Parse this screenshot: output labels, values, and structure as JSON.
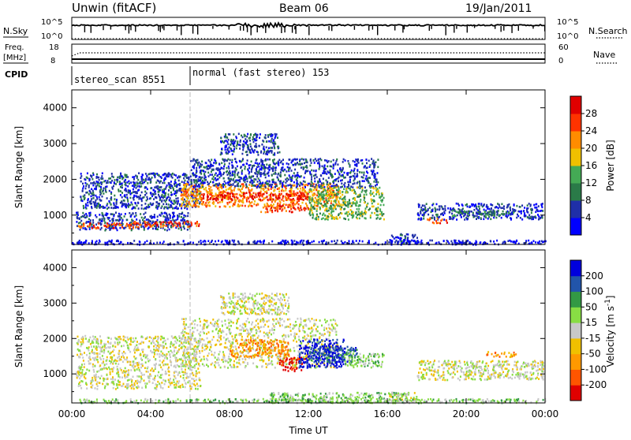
{
  "header": {
    "station": "Unwin (fitACF)",
    "beam": "Beam 06",
    "date": "19/Jan/2011"
  },
  "strip_labels": {
    "nsky": "N.Sky",
    "freq_line1": "Freq.",
    "freq_line2": "[MHz]",
    "cpid": "CPID",
    "nsearch": "N.Search",
    "nave": "Nave"
  },
  "strip_ticks": {
    "nsky_left": [
      "10^5",
      "10^0"
    ],
    "nsky_right": [
      "10^5",
      "10^0"
    ],
    "freq_left": [
      "18",
      "8"
    ],
    "nave_right": [
      "60",
      "0"
    ]
  },
  "cpid_segments": [
    {
      "label": "stereo_scan 8551",
      "start_hour": 0
    },
    {
      "label": "normal (fast stereo) 153",
      "start_hour": 6
    }
  ],
  "colors": {
    "power": [
      "#0000ff",
      "#1f2fa8",
      "#2a7a48",
      "#44aa55",
      "#f0c000",
      "#ff8c00",
      "#ff3300",
      "#e00000"
    ],
    "velocity": [
      "#e00000",
      "#ff5500",
      "#ff9900",
      "#f0c000",
      "#c8c8c8",
      "#88dd44",
      "#339944",
      "#2255aa",
      "#0000dd"
    ]
  },
  "chart_data": [
    {
      "type": "heatmap",
      "name": "power",
      "xlabel": "",
      "ylabel": "Slant Range [km]",
      "xlim": [
        0,
        24
      ],
      "ylim": [
        180,
        4500
      ],
      "x_ticks": [
        "00:00",
        "04:00",
        "08:00",
        "12:00",
        "16:00",
        "20:00",
        "00:00"
      ],
      "y_ticks": [
        1000,
        2000,
        3000,
        4000
      ],
      "colorbar": {
        "label": "Power [dB]",
        "ticks": [
          4,
          8,
          12,
          16,
          20,
          24,
          28
        ],
        "range": [
          0,
          32
        ]
      },
      "regions": [
        {
          "t0": 0.2,
          "t1": 6.0,
          "r0": 600,
          "r1": 1100,
          "level": 1
        },
        {
          "t0": 0.3,
          "t1": 3.5,
          "r0": 650,
          "r1": 800,
          "level": 6
        },
        {
          "t0": 0.4,
          "t1": 6.5,
          "r0": 1200,
          "r1": 2200,
          "level": 1
        },
        {
          "t0": 3.0,
          "t1": 6.5,
          "r0": 700,
          "r1": 850,
          "level": 6
        },
        {
          "t0": 5.5,
          "t1": 13.5,
          "r0": 1250,
          "r1": 1900,
          "level": 5
        },
        {
          "t0": 6.5,
          "t1": 12.0,
          "r0": 1450,
          "r1": 1650,
          "level": 7
        },
        {
          "t0": 9.5,
          "t1": 12.0,
          "r0": 1100,
          "r1": 1300,
          "level": 6
        },
        {
          "t0": 6.0,
          "t1": 15.5,
          "r0": 1800,
          "r1": 2600,
          "level": 1
        },
        {
          "t0": 7.5,
          "t1": 10.5,
          "r0": 2700,
          "r1": 3300,
          "level": 1
        },
        {
          "t0": 12.0,
          "t1": 15.8,
          "r0": 900,
          "r1": 1800,
          "level": 3
        },
        {
          "t0": 16.0,
          "t1": 17.5,
          "r0": 200,
          "r1": 500,
          "level": 1
        },
        {
          "t0": 17.5,
          "t1": 23.9,
          "r0": 900,
          "r1": 1350,
          "level": 1
        },
        {
          "t0": 18.0,
          "t1": 19.0,
          "r0": 800,
          "r1": 950,
          "level": 6
        },
        {
          "t0": 19.0,
          "t1": 22.5,
          "r0": 1000,
          "r1": 1150,
          "level": 2
        },
        {
          "t0": 0.0,
          "t1": 24.0,
          "r0": 200,
          "r1": 320,
          "level": 0
        }
      ]
    },
    {
      "type": "heatmap",
      "name": "velocity",
      "xlabel": "Time UT",
      "ylabel": "Slant Range [km]",
      "xlim": [
        0,
        24
      ],
      "ylim": [
        180,
        4500
      ],
      "x_ticks": [
        "00:00",
        "04:00",
        "08:00",
        "12:00",
        "16:00",
        "20:00",
        "00:00"
      ],
      "y_ticks": [
        1000,
        2000,
        3000,
        4000
      ],
      "colorbar": {
        "label": "Velocity [m s^-1]",
        "ticks": [
          -200,
          -100,
          -50,
          -15,
          15,
          50,
          100,
          200
        ]
      },
      "regions": [
        {
          "t0": 0.2,
          "t1": 6.5,
          "r0": 600,
          "r1": 2100,
          "level": 4
        },
        {
          "t0": 5.5,
          "t1": 13.5,
          "r0": 1200,
          "r1": 2600,
          "level": 4
        },
        {
          "t0": 7.5,
          "t1": 11.0,
          "r0": 2700,
          "r1": 3300,
          "level": 4
        },
        {
          "t0": 8.0,
          "t1": 11.0,
          "r0": 1500,
          "r1": 2000,
          "level": 2
        },
        {
          "t0": 10.5,
          "t1": 11.8,
          "r0": 1100,
          "r1": 1500,
          "level": 0
        },
        {
          "t0": 11.5,
          "t1": 13.8,
          "r0": 1200,
          "r1": 2000,
          "level": 8
        },
        {
          "t0": 12.0,
          "t1": 14.5,
          "r0": 1350,
          "r1": 1800,
          "level": 7
        },
        {
          "t0": 13.8,
          "t1": 15.8,
          "r0": 1200,
          "r1": 1600,
          "level": 5
        },
        {
          "t0": 16.0,
          "t1": 17.5,
          "r0": 200,
          "r1": 500,
          "level": 4
        },
        {
          "t0": 17.5,
          "t1": 23.9,
          "r0": 850,
          "r1": 1400,
          "level": 4
        },
        {
          "t0": 21.0,
          "t1": 22.5,
          "r0": 1500,
          "r1": 1650,
          "level": 2
        },
        {
          "t0": 10.0,
          "t1": 17.0,
          "r0": 200,
          "r1": 500,
          "level": 5
        },
        {
          "t0": 0.0,
          "t1": 24.0,
          "r0": 200,
          "r1": 320,
          "level": 5
        }
      ]
    }
  ]
}
